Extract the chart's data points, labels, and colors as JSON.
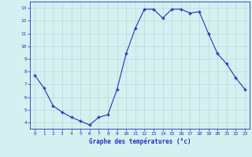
{
  "hours": [
    0,
    1,
    2,
    3,
    4,
    5,
    6,
    7,
    8,
    9,
    10,
    11,
    12,
    13,
    14,
    15,
    16,
    17,
    18,
    19,
    20,
    21,
    22,
    23
  ],
  "temps": [
    7.7,
    6.7,
    5.3,
    4.8,
    4.4,
    4.1,
    3.8,
    4.4,
    4.6,
    6.6,
    9.4,
    11.4,
    12.9,
    12.9,
    12.2,
    12.9,
    12.9,
    12.6,
    12.7,
    11.0,
    9.4,
    8.6,
    7.5,
    6.6
  ],
  "line_color": "#2233bb",
  "marker_color": "#2233bb",
  "bg_color": "#d5f0f0",
  "grid_color": "#b8d8d8",
  "axis_label_color": "#2233bb",
  "tick_color": "#2233bb",
  "xlabel": "Graphe des températures (°c)",
  "xlim": [
    -0.5,
    23.5
  ],
  "ylim": [
    3.5,
    13.5
  ],
  "yticks": [
    4,
    5,
    6,
    7,
    8,
    9,
    10,
    11,
    12,
    13
  ],
  "xticks": [
    0,
    1,
    2,
    3,
    4,
    5,
    6,
    7,
    8,
    9,
    10,
    11,
    12,
    13,
    14,
    15,
    16,
    17,
    18,
    19,
    20,
    21,
    22,
    23
  ]
}
